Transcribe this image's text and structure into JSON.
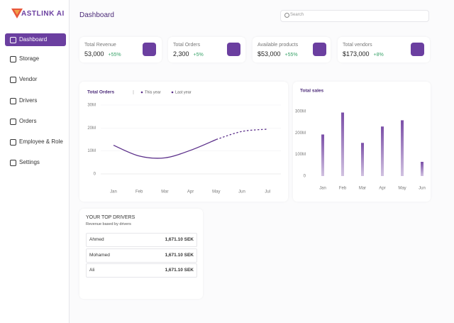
{
  "brand": "ASTLINK AI",
  "sidebar": {
    "items": [
      "Dashboard",
      "Storage",
      "Vendor",
      "Drivers",
      "Orders",
      "Employee & Role",
      "Settings"
    ]
  },
  "header": {
    "title": "Dashboard",
    "search_placeholder": "Search"
  },
  "stats": [
    {
      "label": "Total Revenue",
      "value": "53,000",
      "change": "+55%"
    },
    {
      "label": "Total Orders",
      "value": "2,300",
      "change": "+5%"
    },
    {
      "label": "Available products",
      "value": "$53,000",
      "change": "+55%"
    },
    {
      "label": "Total vendors",
      "value": "$173,000",
      "change": "+8%"
    }
  ],
  "orders_chart": {
    "type": "line",
    "title": "Total Orders",
    "categories": [
      "Jan",
      "Feb",
      "Mar",
      "Apr",
      "May",
      "Jun",
      "Jul"
    ],
    "series": [
      {
        "name": "This year",
        "color": "#5b2f8a",
        "dashed": false,
        "values": [
          12500000,
          7800000,
          7000000,
          10300000,
          15000000,
          null,
          null
        ]
      },
      {
        "name": "Last year",
        "color": "#5b2f8a",
        "dashed": true,
        "values": [
          null,
          null,
          null,
          null,
          15000000,
          18500000,
          19500000
        ]
      }
    ],
    "ylim": [
      0,
      30000000
    ],
    "yticks": [
      {
        "value": 0,
        "label": "0"
      },
      {
        "value": 10000000,
        "label": "10M"
      },
      {
        "value": 20000000,
        "label": "20M"
      },
      {
        "value": 30000000,
        "label": "30M"
      }
    ],
    "grid": true
  },
  "sales_chart": {
    "type": "bar",
    "title": "Total sales",
    "categories": [
      "Jan",
      "Feb",
      "Mar",
      "Apr",
      "May",
      "Jun"
    ],
    "color": "#7b4fa8",
    "values": [
      193000000,
      295000000,
      154000000,
      230000000,
      259000000,
      66000000
    ],
    "ylim": [
      0,
      300000000
    ],
    "yticks": [
      {
        "value": 0,
        "label": "0"
      },
      {
        "value": 100000000,
        "label": "100M"
      },
      {
        "value": 200000000,
        "label": "200M"
      },
      {
        "value": 300000000,
        "label": "300M"
      }
    ]
  },
  "drivers": {
    "title": "YOUR TOP DRIVERS",
    "subtitle": "Revenue based by drivers",
    "rows": [
      [
        "Ahmed",
        "1,671.10 SEK"
      ],
      [
        "Mohamed",
        "1,671.10 SEK"
      ],
      [
        "Ali",
        "1,671.10 SEK"
      ]
    ]
  }
}
